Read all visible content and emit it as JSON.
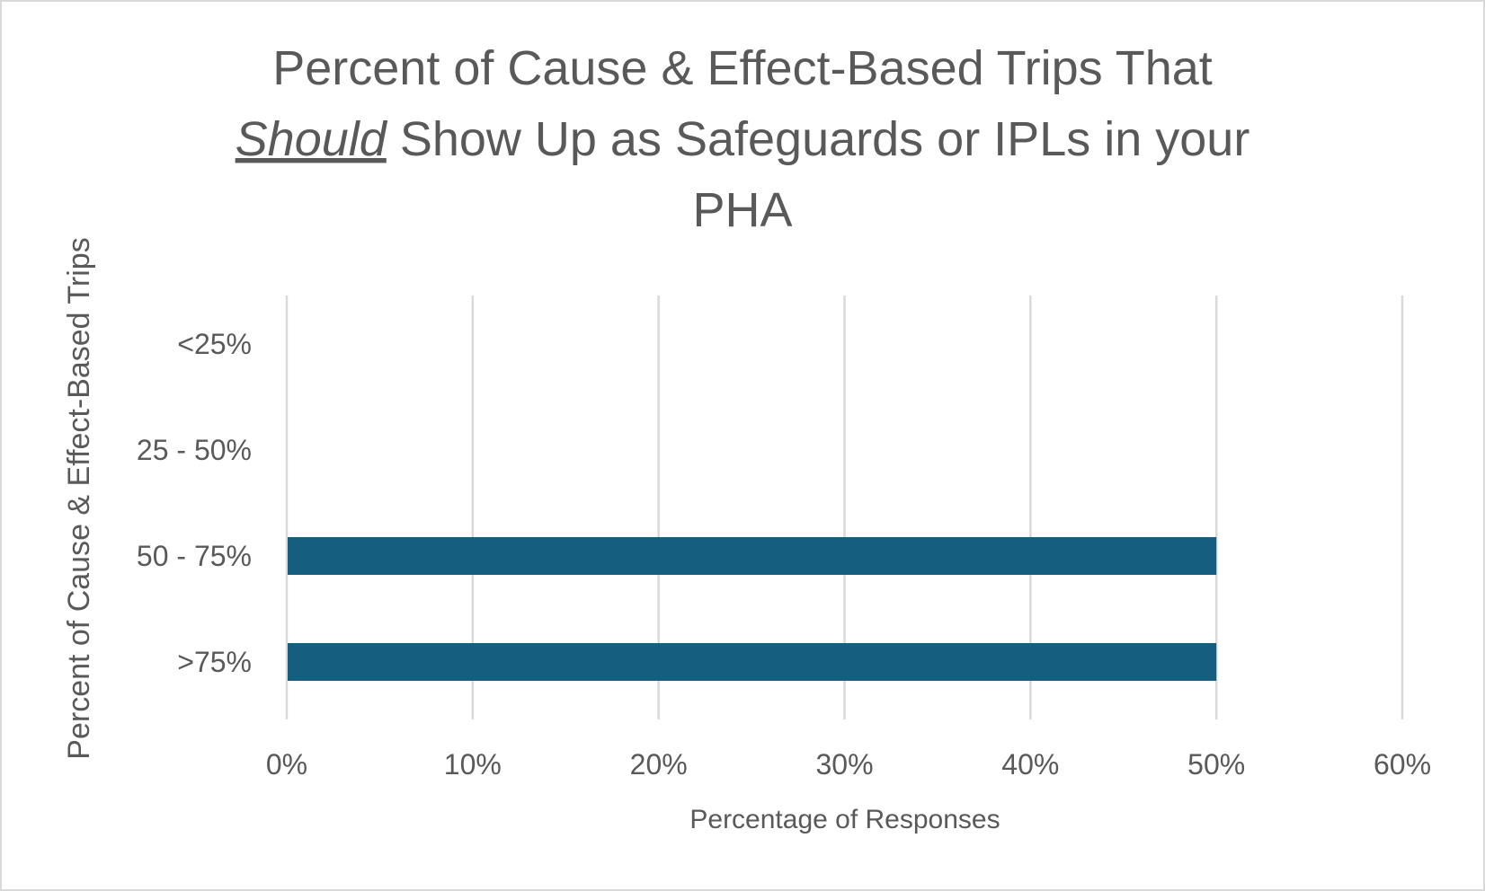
{
  "chart_data": {
    "type": "bar",
    "orientation": "horizontal",
    "title": {
      "line1": "Percent of Cause & Effect-Based Trips That",
      "line2_emphasis": "Should",
      "line2_rest": " Show Up as Safeguards or IPLs in your",
      "line3": "PHA"
    },
    "categories": [
      "<25%",
      "25 - 50%",
      "50 - 75%",
      ">75%"
    ],
    "values": [
      0,
      0,
      50,
      50
    ],
    "xlabel": "Percentage of Responses",
    "ylabel": "Percent of Cause & Effect-Based Trips",
    "xlim": [
      0,
      60
    ],
    "xticks": [
      0,
      10,
      20,
      30,
      40,
      50,
      60
    ],
    "xtick_labels": [
      "0%",
      "10%",
      "20%",
      "30%",
      "40%",
      "50%",
      "60%"
    ],
    "grid": "vertical",
    "bar_color": "#165E7F",
    "grid_color": "#D9D9D9"
  }
}
